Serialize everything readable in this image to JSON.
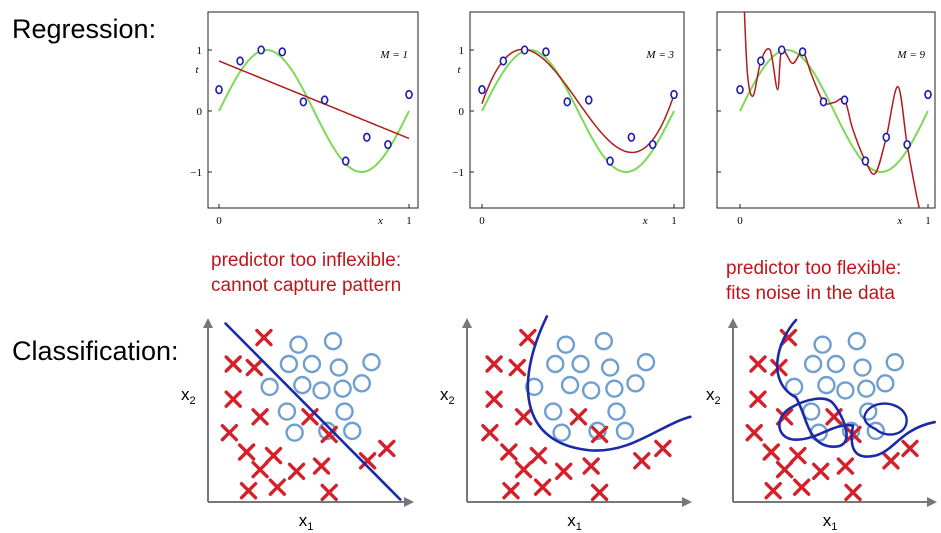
{
  "labels": {
    "regression": "Regression:",
    "classification": "Classification:"
  },
  "notes": {
    "underfit_line1": "predictor too inflexible:",
    "underfit_line2": "cannot capture pattern",
    "overfit_line1": "predictor too flexible:",
    "overfit_line2": "fits noise in the data"
  },
  "colors": {
    "true_curve": "#7ed957",
    "fit_curve": "#b01c1c",
    "data_point": "#1b1bb0",
    "note_text": "#c0141c",
    "class_circle": "#6f9fd0",
    "class_cross": "#d4202a",
    "boundary": "#1a2aa8"
  },
  "regression": {
    "x_tick_labels": [
      "0",
      "1"
    ],
    "y_tick_labels": [
      "1",
      "0",
      "−1"
    ],
    "xlabel": "x",
    "ylabel": "t",
    "points": [
      {
        "x": 0.0,
        "t": 0.35
      },
      {
        "x": 0.111,
        "t": 0.82
      },
      {
        "x": 0.222,
        "t": 1.0
      },
      {
        "x": 0.333,
        "t": 0.97
      },
      {
        "x": 0.444,
        "t": 0.15
      },
      {
        "x": 0.556,
        "t": 0.18
      },
      {
        "x": 0.667,
        "t": -0.82
      },
      {
        "x": 0.778,
        "t": -0.43
      },
      {
        "x": 0.889,
        "t": -0.55
      },
      {
        "x": 1.0,
        "t": 0.27
      }
    ],
    "panels": [
      {
        "model_label": "M = 1"
      },
      {
        "model_label": "M = 3"
      },
      {
        "model_label": "M = 9"
      }
    ]
  },
  "classification": {
    "xlabel_base": "x",
    "xlabel_sub": "1",
    "ylabel_base": "x",
    "ylabel_sub": "2",
    "crosses": [
      [
        0.26,
        0.1
      ],
      [
        0.1,
        0.25
      ],
      [
        0.21,
        0.27
      ],
      [
        0.1,
        0.45
      ],
      [
        0.24,
        0.55
      ],
      [
        0.5,
        0.55
      ],
      [
        0.08,
        0.64
      ],
      [
        0.17,
        0.75
      ],
      [
        0.31,
        0.77
      ],
      [
        0.24,
        0.85
      ],
      [
        0.56,
        0.83
      ],
      [
        0.8,
        0.8
      ],
      [
        0.9,
        0.73
      ],
      [
        0.6,
        0.65
      ],
      [
        0.43,
        0.86
      ],
      [
        0.18,
        0.97
      ],
      [
        0.33,
        0.95
      ],
      [
        0.6,
        0.98
      ]
    ],
    "circles": [
      [
        0.44,
        0.14
      ],
      [
        0.62,
        0.12
      ],
      [
        0.39,
        0.25
      ],
      [
        0.51,
        0.25
      ],
      [
        0.65,
        0.27
      ],
      [
        0.82,
        0.24
      ],
      [
        0.29,
        0.38
      ],
      [
        0.46,
        0.37
      ],
      [
        0.56,
        0.4
      ],
      [
        0.67,
        0.39
      ],
      [
        0.77,
        0.36
      ],
      [
        0.38,
        0.52
      ],
      [
        0.68,
        0.52
      ],
      [
        0.42,
        0.64
      ],
      [
        0.59,
        0.63
      ],
      [
        0.72,
        0.63
      ]
    ]
  }
}
